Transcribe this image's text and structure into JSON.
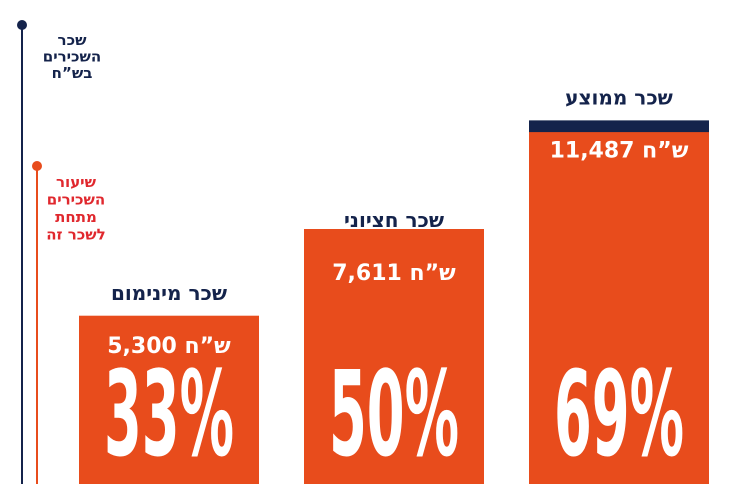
{
  "chart_data": {
    "type": "bar",
    "categories": [
      "שכר מינימום",
      "שכר חציוני",
      "שכר ממוצע"
    ],
    "series": [
      {
        "color": "#14234b",
        "values": [
          5300,
          7611,
          11487
        ],
        "value_labels": [
          "5,300 ש”ח",
          "7,611 ש”ח",
          "11,487 ש”ח"
        ]
      },
      {
        "color": "#e84c1c",
        "axis": "y2",
        "values": [
          33,
          50,
          69
        ],
        "value_labels": [
          "33%",
          "50%",
          "69%"
        ]
      }
    ],
    "ylabel": [
      "שכר",
      "השכירים",
      "בש”ח"
    ],
    "y2label": [
      "שיעור",
      "השכירים",
      "מתחת",
      "לשכר זה"
    ],
    "ylim": [
      0,
      14500
    ],
    "y2lim": [
      0,
      90
    ]
  }
}
